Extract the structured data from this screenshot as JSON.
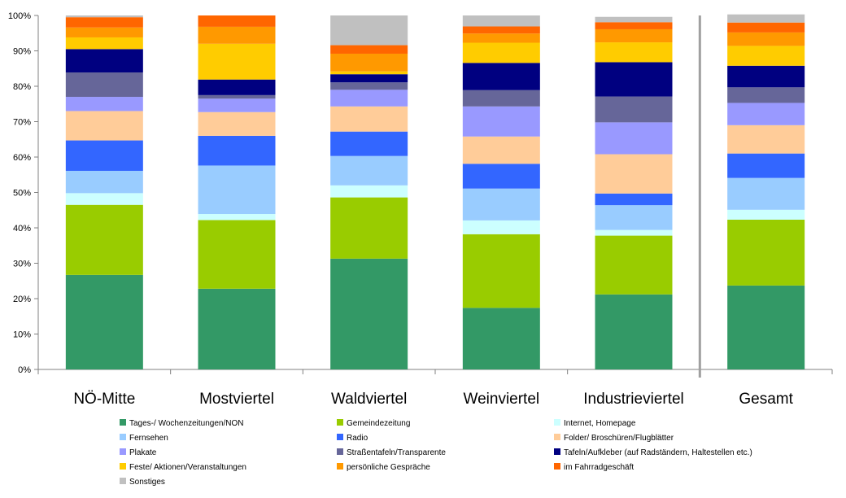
{
  "chart_data": {
    "type": "bar",
    "stacked": true,
    "percent": true,
    "categories": [
      "NÖ-Mitte",
      "Mostviertel",
      "Waldviertel",
      "Weinviertel",
      "Industrieviertel",
      "Gesamt"
    ],
    "y_ticks": [
      "0%",
      "10%",
      "20%",
      "30%",
      "40%",
      "50%",
      "60%",
      "70%",
      "80%",
      "90%",
      "100%"
    ],
    "ylim": [
      0,
      100
    ],
    "separator_before": "Gesamt",
    "legend_position": "bottom",
    "series": [
      {
        "name": "Tages-/ Wochenzeitungen/NON",
        "color": "#339966",
        "values": [
          26.7,
          22.8,
          31.3,
          17.4,
          21.2,
          23.7
        ]
      },
      {
        "name": "Gemeindezeitung",
        "color": "#99CC00",
        "values": [
          19.8,
          19.4,
          17.3,
          20.8,
          16.6,
          18.6
        ]
      },
      {
        "name": "Internet, Homepage",
        "color": "#CCFFFF",
        "values": [
          3.3,
          1.7,
          3.4,
          3.9,
          1.6,
          2.8
        ]
      },
      {
        "name": "Fernsehen",
        "color": "#99CCFF",
        "values": [
          6.3,
          13.7,
          8.3,
          9.0,
          7.0,
          9.0
        ]
      },
      {
        "name": "Radio",
        "color": "#3366FF",
        "values": [
          8.6,
          8.4,
          6.9,
          7.0,
          3.3,
          6.9
        ]
      },
      {
        "name": "Folder/ Broschüren/Flugblätter",
        "color": "#FFCC99",
        "values": [
          8.3,
          6.7,
          7.1,
          7.7,
          11.1,
          8.0
        ]
      },
      {
        "name": "Plakate",
        "color": "#9999FF",
        "values": [
          4.0,
          3.8,
          4.7,
          8.5,
          9.0,
          6.3
        ]
      },
      {
        "name": "Straßentafeln/Transparente",
        "color": "#666699",
        "values": [
          6.9,
          1.0,
          2.1,
          4.6,
          7.3,
          4.4
        ]
      },
      {
        "name": "Tafeln/Aufkleber (auf Radständern, Haltestellen etc.)",
        "color": "#000080",
        "values": [
          6.6,
          4.4,
          2.3,
          7.7,
          9.7,
          6.1
        ]
      },
      {
        "name": "Feste/ Aktionen/Veranstaltungen",
        "color": "#FFCC00",
        "values": [
          3.3,
          10.1,
          0.8,
          5.7,
          5.6,
          5.6
        ]
      },
      {
        "name": "persönliche Gespräche",
        "color": "#FF9900",
        "values": [
          2.8,
          4.8,
          5.0,
          2.6,
          3.7,
          3.8
        ]
      },
      {
        "name": "im Fahrradgeschäft",
        "color": "#FF6600",
        "values": [
          2.9,
          3.2,
          2.4,
          2.0,
          2.0,
          2.8
        ]
      },
      {
        "name": "Sonstiges",
        "color": "#C0C0C0",
        "values": [
          0.5,
          0.0,
          8.4,
          3.1,
          1.5,
          2.3
        ]
      }
    ]
  }
}
